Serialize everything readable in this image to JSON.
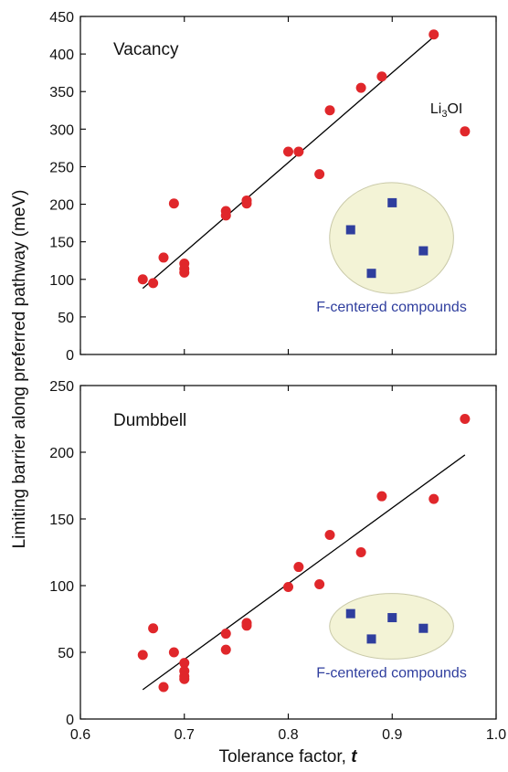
{
  "figure": {
    "ylabel": "Limiting barrier along preferred pathway (meV)",
    "xlabel_main": "Tolerance factor, ",
    "xlabel_italic": "t"
  },
  "colors": {
    "circle": "#e0272b",
    "square": "#2f3e9e",
    "ellipse_fill": "#f3f3d6",
    "ellipse_stroke": "#c9c9a8",
    "fit": "#000000",
    "legend_text": "#2f3e9e"
  },
  "chart_data": [
    {
      "type": "scatter",
      "title": "Vacancy",
      "xlim": [
        0.6,
        1.0
      ],
      "ylim": [
        0,
        450
      ],
      "xticks": [
        "0.6",
        "0.7",
        "0.8",
        "0.9",
        "1.0"
      ],
      "yticks": [
        "0",
        "50",
        "100",
        "150",
        "200",
        "250",
        "300",
        "350",
        "400",
        "450"
      ],
      "grid": false,
      "series": [
        {
          "marker": "circle",
          "x": [
            0.66,
            0.67,
            0.68,
            0.69,
            0.7,
            0.7,
            0.7,
            0.74,
            0.74,
            0.76,
            0.76,
            0.8,
            0.81,
            0.83,
            0.84,
            0.87,
            0.89,
            0.94,
            0.97
          ],
          "y": [
            100,
            95,
            129,
            201,
            121,
            114,
            109,
            191,
            185,
            205,
            201,
            270,
            270,
            240,
            325,
            355,
            370,
            426,
            297
          ]
        }
      ],
      "fit_line": {
        "x": [
          0.66,
          0.94
        ],
        "y": [
          88,
          423
        ]
      },
      "annotation": {
        "text_main": "Li",
        "text_sub": "3",
        "text_end": "OI",
        "x": 0.97,
        "y": 297
      },
      "inset": {
        "label": "F-centered compounds",
        "squares": [
          {
            "x": 0.86,
            "y": 166
          },
          {
            "x": 0.88,
            "y": 108
          },
          {
            "x": 0.9,
            "y": 202
          },
          {
            "x": 0.93,
            "y": 138
          }
        ]
      }
    },
    {
      "type": "scatter",
      "title": "Dumbbell",
      "xlim": [
        0.6,
        1.0
      ],
      "ylim": [
        0,
        250
      ],
      "xticks": [
        "0.6",
        "0.7",
        "0.8",
        "0.9",
        "1.0"
      ],
      "yticks": [
        "0",
        "50",
        "100",
        "150",
        "200",
        "250"
      ],
      "grid": false,
      "series": [
        {
          "marker": "circle",
          "x": [
            0.66,
            0.67,
            0.68,
            0.69,
            0.7,
            0.7,
            0.7,
            0.7,
            0.74,
            0.74,
            0.76,
            0.76,
            0.8,
            0.81,
            0.83,
            0.84,
            0.87,
            0.89,
            0.94,
            0.97
          ],
          "y": [
            48,
            68,
            24,
            50,
            42,
            36,
            32,
            30,
            64,
            52,
            72,
            70,
            99,
            114,
            101,
            138,
            125,
            167,
            165,
            225
          ]
        }
      ],
      "fit_line": {
        "x": [
          0.66,
          0.97
        ],
        "y": [
          22,
          198
        ]
      },
      "inset": {
        "label": "F-centered compounds",
        "squares": [
          {
            "x": 0.86,
            "y": 79
          },
          {
            "x": 0.88,
            "y": 60
          },
          {
            "x": 0.9,
            "y": 76
          },
          {
            "x": 0.93,
            "y": 68
          }
        ]
      }
    }
  ]
}
